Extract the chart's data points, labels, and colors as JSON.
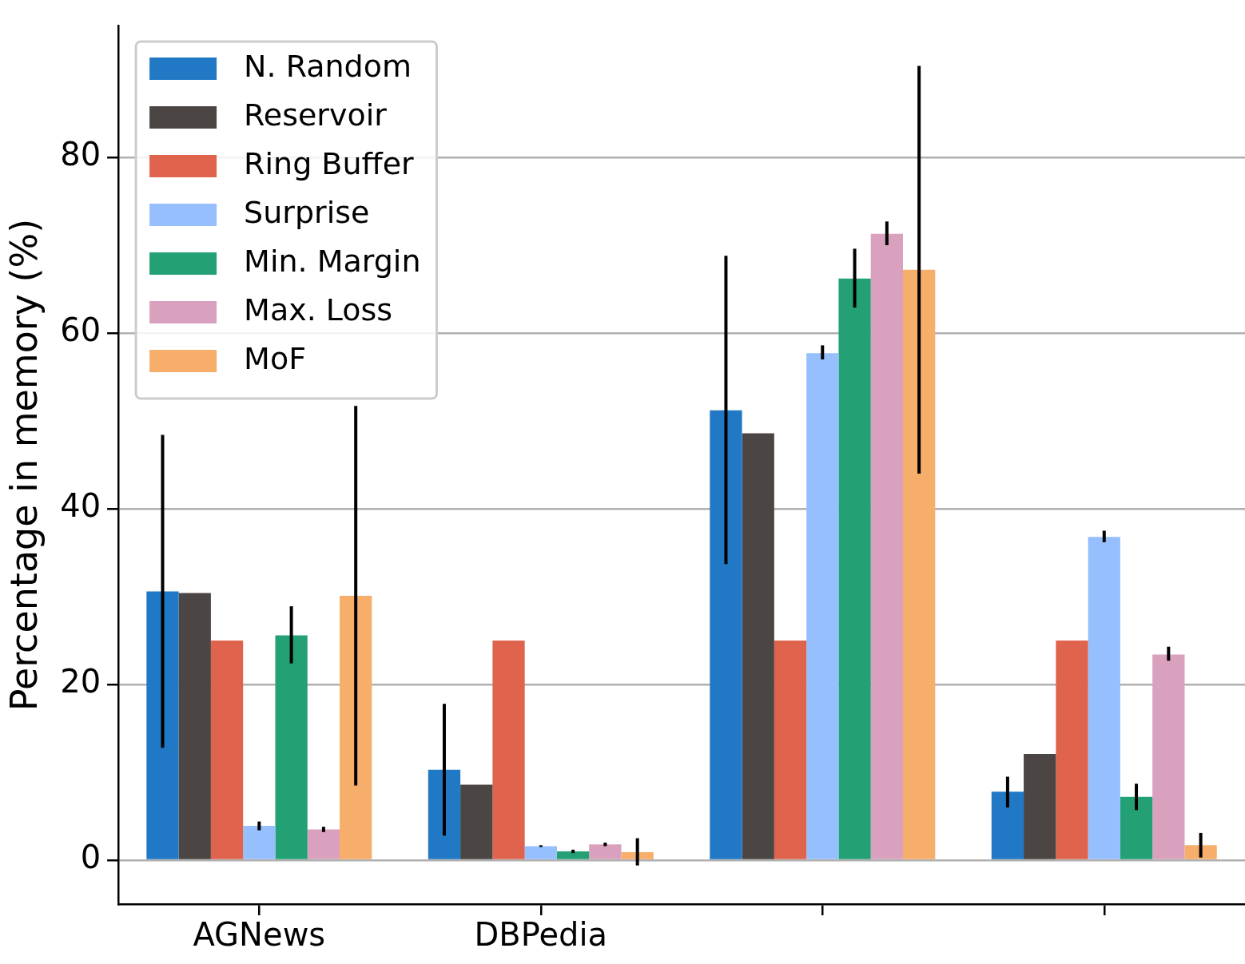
{
  "chart_data": {
    "type": "bar",
    "ylabel": "Percentage in memory (%)",
    "categories": [
      "AGNews",
      "DBPedia",
      null,
      null
    ],
    "ylim": [
      -5,
      95
    ],
    "yticks": [
      0,
      20,
      40,
      60,
      80
    ],
    "grid": "y",
    "legend": "top left",
    "series": [
      {
        "name": "N. Random",
        "color": "#2178c4",
        "values": [
          30.6,
          10.3,
          51.2,
          7.8
        ],
        "errors": [
          [
            12.8,
            48.4
          ],
          [
            2.8,
            17.8
          ],
          [
            33.7,
            68.8
          ],
          [
            6,
            9.5
          ]
        ]
      },
      {
        "name": "Reservoir",
        "color": "#4b4644",
        "values": [
          30.4,
          8.6,
          48.6,
          12.1
        ],
        "errors": [
          null,
          null,
          null,
          null
        ]
      },
      {
        "name": "Ring Buffer",
        "color": "#e0634e",
        "values": [
          25,
          25,
          25,
          25
        ],
        "errors": [
          null,
          null,
          null,
          null
        ]
      },
      {
        "name": "Surprise",
        "color": "#96bffd",
        "values": [
          3.9,
          1.6,
          57.7,
          36.8
        ],
        "errors": [
          [
            3.4,
            4.4
          ],
          [
            1.5,
            1.7
          ],
          [
            57,
            58.6
          ],
          [
            36.2,
            37.5
          ]
        ]
      },
      {
        "name": "Min. Margin",
        "color": "#23a074",
        "values": [
          25.6,
          1.0,
          66.2,
          7.2
        ],
        "errors": [
          [
            22.4,
            28.9
          ],
          [
            0.8,
            1.2
          ],
          [
            62.9,
            69.6
          ],
          [
            5.7,
            8.7
          ]
        ]
      },
      {
        "name": "Max. Loss",
        "color": "#d9a1bd",
        "values": [
          3.5,
          1.8,
          71.3,
          23.4
        ],
        "errors": [
          [
            3.2,
            3.8
          ],
          [
            1.6,
            2.0
          ],
          [
            70,
            72.7
          ],
          [
            22.7,
            24.3
          ]
        ]
      },
      {
        "name": "MoF",
        "color": "#f6ae6a",
        "values": [
          30.1,
          0.9,
          67.2,
          1.7
        ],
        "errors": [
          [
            8.5,
            51.7
          ],
          [
            -0.6,
            2.5
          ],
          [
            44,
            90.4
          ],
          [
            0.3,
            3.1
          ]
        ]
      }
    ]
  }
}
